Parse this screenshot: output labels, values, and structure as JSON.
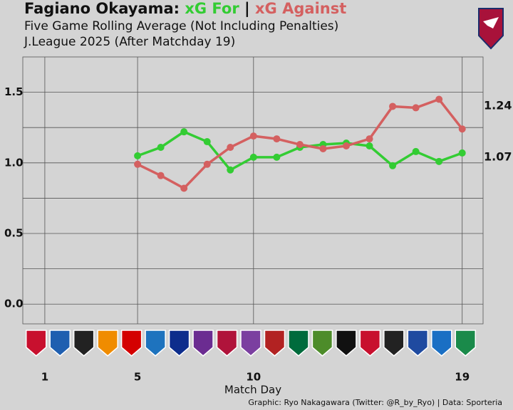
{
  "chart_data": {
    "type": "line",
    "title": "Fagiano Okayama:",
    "title_separator": "|",
    "subtitle": "Five Game Rolling Average (Not Including Penalties)",
    "subtitle2": "J.League 2025 (After Matchday 19)",
    "x_label": "Match Day",
    "credits": "Graphic: Ryo Nakagawara (Twitter: @R_by_Ryo) | Data: Sporteria",
    "x": [
      5,
      6,
      7,
      8,
      9,
      10,
      11,
      12,
      13,
      14,
      15,
      16,
      17,
      18,
      19
    ],
    "series": [
      {
        "name": "xG For",
        "color": "#33cc33",
        "values": [
          1.05,
          1.11,
          1.22,
          1.15,
          0.95,
          1.04,
          1.04,
          1.11,
          1.13,
          1.14,
          1.12,
          0.98,
          1.08,
          1.01,
          1.07
        ]
      },
      {
        "name": "xG Against",
        "color": "#d46060",
        "values": [
          0.99,
          0.91,
          0.82,
          0.99,
          1.11,
          1.19,
          1.17,
          1.13,
          1.1,
          1.12,
          1.17,
          1.4,
          1.39,
          1.45,
          1.24
        ]
      }
    ],
    "xlim": [
      0.05,
      19.9
    ],
    "ylim": [
      -0.14,
      1.75
    ],
    "xticks": [
      1,
      5,
      10,
      19
    ],
    "yticks": [
      {
        "value": 0,
        "label": "0.0"
      },
      {
        "value": 0.5,
        "label": "0.5"
      },
      {
        "value": 1,
        "label": "1.0"
      },
      {
        "value": 1.5,
        "label": "1.5"
      }
    ],
    "minor_yticks": [
      0.25,
      0.75,
      1.25
    ],
    "grid": true
  }
}
